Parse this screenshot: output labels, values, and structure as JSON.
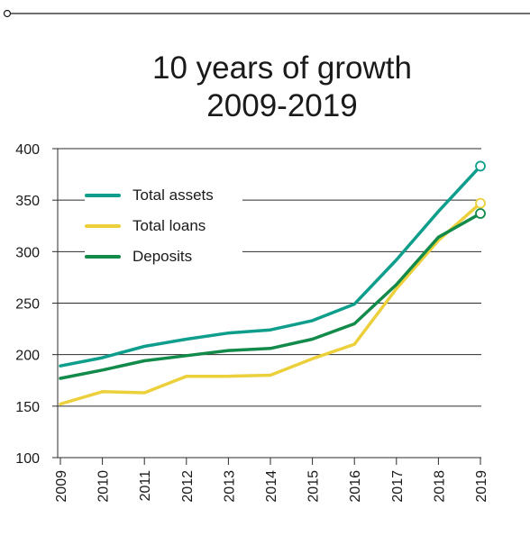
{
  "chart_data": {
    "type": "line",
    "title": "10 years of growth",
    "subtitle": "2009-2019",
    "categories": [
      "2009",
      "2010",
      "2011",
      "2012",
      "2013",
      "2014",
      "2015",
      "2016",
      "2017",
      "2018",
      "2019"
    ],
    "ylim": [
      100,
      400
    ],
    "yticks": [
      100,
      150,
      200,
      250,
      300,
      350,
      400
    ],
    "grid": true,
    "legend_position": "top-left",
    "series": [
      {
        "name": "Total assets",
        "color": "#0f9e8c",
        "values": [
          189,
          197,
          208,
          215,
          221,
          224,
          233,
          249,
          292,
          339,
          383
        ]
      },
      {
        "name": "Total loans",
        "color": "#ecd03b",
        "values": [
          152,
          164,
          163,
          179,
          179,
          180,
          196,
          210,
          264,
          311,
          347
        ]
      },
      {
        "name": "Deposits",
        "color": "#128a4a",
        "values": [
          177,
          185,
          194,
          199,
          204,
          206,
          215,
          230,
          268,
          314,
          337
        ]
      }
    ]
  }
}
